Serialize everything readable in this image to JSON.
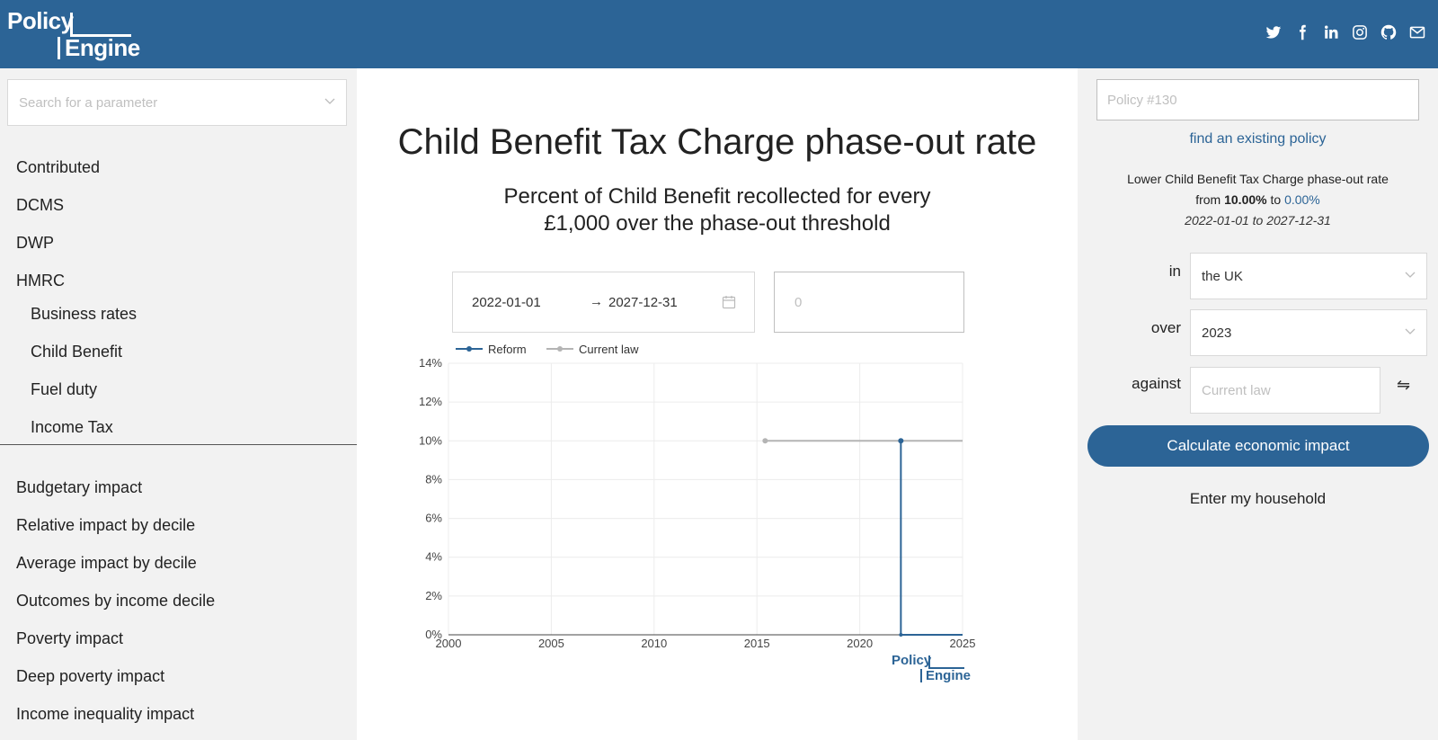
{
  "header": {
    "logo_word1": "Policy",
    "logo_word2": "Engine",
    "social_icons": [
      "twitter-icon",
      "facebook-icon",
      "linkedin-icon",
      "instagram-icon",
      "github-icon",
      "mail-icon"
    ],
    "bg_color": "#2c6496"
  },
  "left": {
    "search_placeholder": "Search for a parameter",
    "tree": {
      "top_items": [
        "Contributed",
        "DCMS",
        "DWP",
        "HMRC"
      ],
      "hmrc_children": [
        "Business rates",
        "Child Benefit",
        "Fuel duty",
        "Income Tax"
      ]
    },
    "outputs": [
      "Budgetary impact",
      "Relative impact by decile",
      "Average impact by decile",
      "Outcomes by income decile",
      "Poverty impact",
      "Deep poverty impact",
      "Income inequality impact"
    ]
  },
  "main": {
    "title": "Child Benefit Tax Charge phase-out rate",
    "subtitle_line1": "Percent of Child Benefit recollected for every",
    "subtitle_line2": "£1,000 over the phase-out threshold",
    "date_start": "2022-01-01",
    "date_arrow": "→",
    "date_end": "2027-12-31",
    "value_placeholder": "0",
    "watermark_word1": "Policy",
    "watermark_word2": "Engine"
  },
  "chart_data": {
    "type": "line",
    "xlim": [
      2000,
      2025
    ],
    "ylim": [
      0,
      14
    ],
    "x_ticks": [
      "2000",
      "2005",
      "2010",
      "2015",
      "2020",
      "2025"
    ],
    "y_ticks": [
      "0%",
      "2%",
      "4%",
      "6%",
      "8%",
      "10%",
      "12%",
      "14%"
    ],
    "legend": [
      "Reform",
      "Current law"
    ],
    "legend_position": "top-left",
    "grid": true,
    "series": [
      {
        "name": "Reform",
        "color": "#2c6496",
        "points": [
          [
            2022,
            10
          ],
          [
            2022,
            0
          ],
          [
            2025,
            0
          ]
        ]
      },
      {
        "name": "Current law",
        "color": "#b4b4b4",
        "points": [
          [
            2015.4,
            10
          ],
          [
            2025,
            10
          ]
        ]
      }
    ]
  },
  "right": {
    "policy_placeholder": "Policy #130",
    "find_link": "find an existing policy",
    "summary_line1": "Lower Child Benefit Tax Charge phase-out rate",
    "summary_from": "from",
    "summary_old": "10.00%",
    "summary_to": "to",
    "summary_new": "0.00%",
    "summary_dates": "2022-01-01 to 2027-12-31",
    "label_in": "in",
    "region": "the UK",
    "label_over": "over",
    "year": "2023",
    "label_against": "against",
    "against_placeholder": "Current law",
    "swap_glyph": "⇋",
    "calc_button": "Calculate economic impact",
    "household_link": "Enter my household"
  }
}
